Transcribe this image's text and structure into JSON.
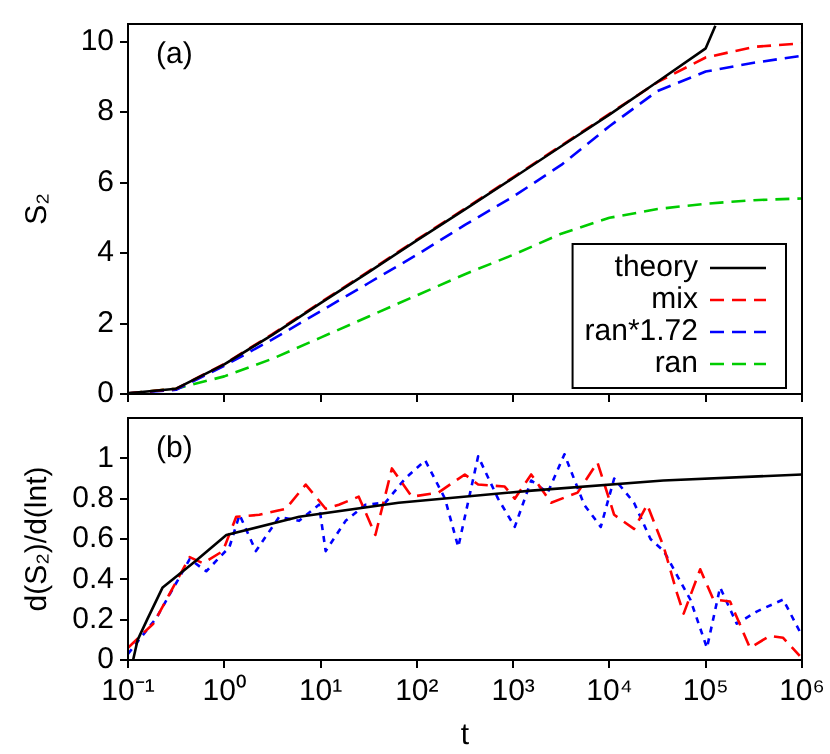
{
  "chart_data": [
    {
      "type": "line",
      "ylabel": "S₂",
      "annotations": [
        "(a)"
      ],
      "log": "x",
      "xlim": [
        0.1,
        1000000
      ],
      "ylim": [
        0,
        10.5
      ],
      "xticks": [
        {
          "value": 0.1,
          "label": null
        },
        {
          "value": 1,
          "label": null
        },
        {
          "value": 10,
          "label": null
        },
        {
          "value": 100,
          "label": null
        },
        {
          "value": 1000,
          "label": null
        },
        {
          "value": 10000,
          "label": null
        },
        {
          "value": 100000,
          "label": null
        },
        {
          "value": 1000000,
          "label": null
        }
      ],
      "yticks": [
        0,
        2,
        4,
        6,
        8,
        10
      ],
      "tick_labels": "y",
      "legend": "bottom right",
      "marker": "none",
      "grid": false,
      "series": [
        {
          "name": "theory",
          "color": "#000000",
          "line_style": "solid",
          "x": [
            0.1,
            0.316,
            1,
            3.16,
            10,
            31.6,
            100,
            316,
            1000,
            3160,
            10000,
            31600,
            100000,
            126000
          ],
          "values": [
            0.02,
            0.15,
            0.84,
            1.68,
            2.58,
            3.46,
            4.36,
            5.24,
            6.13,
            7.03,
            7.93,
            8.86,
            9.81,
            10.45
          ]
        },
        {
          "name": "mix",
          "color": "#ff0000",
          "line_style": "dashed",
          "x": [
            0.1,
            0.316,
            1,
            3.16,
            10,
            31.6,
            100,
            316,
            1000,
            3160,
            10000,
            31600,
            100000,
            316000,
            1000000
          ],
          "values": [
            0.02,
            0.15,
            0.85,
            1.7,
            2.6,
            3.48,
            4.38,
            5.26,
            6.15,
            7.05,
            7.95,
            8.85,
            9.55,
            9.85,
            9.95
          ]
        },
        {
          "name": "ran*1.72",
          "color": "#0000ff",
          "line_style": "dashed",
          "x": [
            0.1,
            0.316,
            1,
            3.16,
            10,
            31.6,
            100,
            316,
            1000,
            3160,
            10000,
            31600,
            100000,
            316000,
            1000000
          ],
          "values": [
            0.02,
            0.12,
            0.8,
            1.55,
            2.35,
            3.15,
            3.95,
            4.8,
            5.6,
            6.5,
            7.6,
            8.6,
            9.15,
            9.4,
            9.6
          ]
        },
        {
          "name": "ran",
          "color": "#00cc00",
          "line_style": "dashed",
          "x": [
            0.1,
            0.316,
            1,
            3.16,
            10,
            31.6,
            100,
            316,
            1000,
            3160,
            10000,
            31600,
            100000,
            316000,
            1000000
          ],
          "values": [
            0.02,
            0.15,
            0.5,
            1.0,
            1.6,
            2.2,
            2.8,
            3.4,
            3.95,
            4.55,
            5.0,
            5.25,
            5.4,
            5.5,
            5.55
          ]
        }
      ]
    },
    {
      "type": "line",
      "xlabel": "t",
      "ylabel": "d(S₂)/d(lnt)",
      "annotations": [
        "(b)"
      ],
      "log": "x",
      "xlim": [
        0.1,
        1000000
      ],
      "ylim": [
        0,
        1.2
      ],
      "xticks": [
        {
          "value": 0.1,
          "label": "10⁻¹"
        },
        {
          "value": 1,
          "label": "10⁰"
        },
        {
          "value": 10,
          "label": "10¹"
        },
        {
          "value": 100,
          "label": "10²"
        },
        {
          "value": 1000,
          "label": "10³"
        },
        {
          "value": 10000,
          "label": "10⁴"
        },
        {
          "value": 100000,
          "label": "10⁵"
        },
        {
          "value": 1000000,
          "label": "10⁶"
        }
      ],
      "yticks": [
        0,
        0.2,
        0.4,
        0.6,
        0.8,
        1
      ],
      "marker": "none",
      "grid": false,
      "series": [
        {
          "color": "#000000",
          "line_style": "solid",
          "x": [
            0.113,
            0.126,
            0.158,
            0.229,
            0.5,
            1.05,
            6.0,
            64.6,
            1550,
            36300,
            1000000
          ],
          "values": [
            0,
            0.1,
            0.2,
            0.36,
            0.49,
            0.62,
            0.71,
            0.78,
            0.84,
            0.89,
            0.92
          ]
        },
        {
          "color": "#ff0000",
          "line_style": "dashed",
          "x": [
            0.1,
            0.183,
            0.437,
            0.6,
            0.966,
            1.33,
            2.31,
            4.36,
            7.01,
            11.3,
            15.5,
            24.9,
            37.1,
            55.1,
            88.7,
            167,
            315,
            433,
            817,
            1040,
            1540,
            2480,
            4670,
            7510,
            11200,
            18000,
            24700,
            36700,
            50400,
            59000,
            87700,
            120000,
            179000,
            288000,
            464000,
            637000,
            948000
          ],
          "values": [
            0.06,
            0.18,
            0.51,
            0.48,
            0.54,
            0.71,
            0.72,
            0.75,
            0.87,
            0.75,
            0.77,
            0.81,
            0.62,
            0.95,
            0.81,
            0.83,
            0.92,
            0.87,
            0.86,
            0.8,
            0.92,
            0.78,
            0.83,
            0.98,
            0.72,
            0.65,
            0.77,
            0.56,
            0.33,
            0.23,
            0.45,
            0.3,
            0.29,
            0.06,
            0.12,
            0.11,
            0.02
          ]
        },
        {
          "color": "#0000ff",
          "line_style": "dotted",
          "x": [
            0.1,
            0.198,
            0.437,
            0.65,
            1.13,
            1.44,
            2.13,
            3.72,
            5.98,
            9.62,
            11.3,
            18.2,
            29.2,
            47,
            75.7,
            122,
            196,
            269,
            433,
            697,
            1040,
            1540,
            2290,
            3410,
            5470,
            8130,
            11200,
            18000,
            26700,
            36700,
            69200,
            103000,
            141000,
            210000,
            338000,
            637000,
            1000000
          ],
          "values": [
            0.03,
            0.21,
            0.5,
            0.44,
            0.56,
            0.72,
            0.54,
            0.71,
            0.69,
            0.77,
            0.54,
            0.69,
            0.77,
            0.78,
            0.9,
            0.99,
            0.8,
            0.56,
            1.01,
            0.8,
            0.66,
            0.89,
            0.83,
            1.02,
            0.77,
            0.66,
            0.9,
            0.78,
            0.6,
            0.54,
            0.3,
            0.06,
            0.36,
            0.18,
            0.24,
            0.3,
            0.12
          ]
        }
      ]
    }
  ]
}
